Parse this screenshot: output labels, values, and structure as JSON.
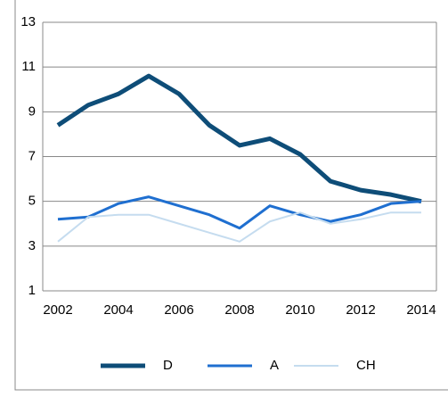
{
  "chart_data": {
    "type": "line",
    "categories": [
      "2002",
      null,
      "2004",
      null,
      "2006",
      null,
      "2008",
      null,
      "2010",
      null,
      "2012",
      null,
      "2014"
    ],
    "series": [
      {
        "name": "D",
        "color": "#0e4d78",
        "values": [
          8.4,
          9.3,
          9.8,
          10.6,
          9.8,
          8.4,
          7.5,
          7.8,
          7.1,
          5.9,
          5.5,
          5.3,
          5.0
        ]
      },
      {
        "name": "A",
        "color": "#1f6fd0",
        "values": [
          4.2,
          4.3,
          4.9,
          5.2,
          4.8,
          4.4,
          3.8,
          4.8,
          4.4,
          4.1,
          4.4,
          4.9,
          5.0
        ]
      },
      {
        "name": "CH",
        "color": "#c5dcef",
        "values": [
          3.2,
          4.3,
          4.4,
          4.4,
          4.0,
          3.6,
          3.2,
          4.1,
          4.5,
          4.0,
          4.2,
          4.5,
          4.5
        ]
      }
    ],
    "ylim": [
      1,
      13
    ],
    "yticks": [
      1,
      3,
      5,
      7,
      9,
      11,
      13
    ],
    "grid": true,
    "legend": "bottom"
  }
}
